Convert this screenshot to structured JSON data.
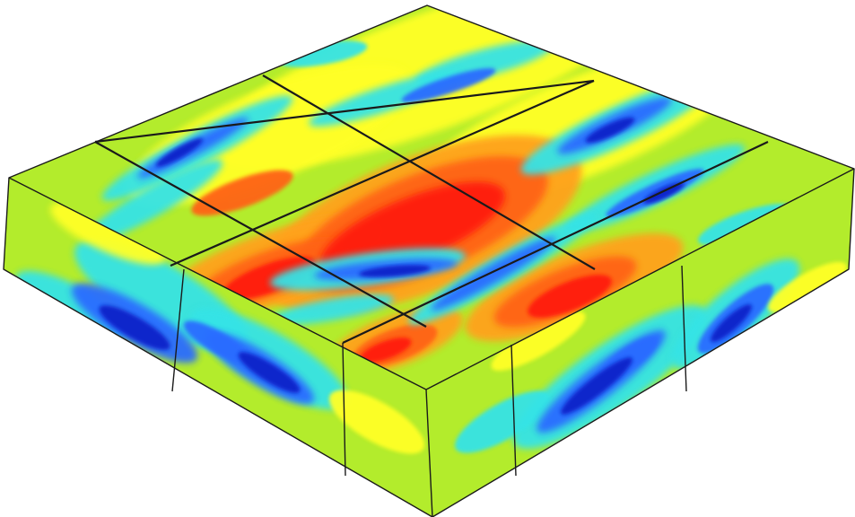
{
  "figure": {
    "colors": {
      "background": "#ffffff",
      "base": "#b3ec2c",
      "yellow": "#ffff26",
      "orange": "#ffa21e",
      "deep_orange": "#ff6414",
      "red": "#ff1e0a",
      "cyan": "#34e3e6",
      "blue": "#2c6cff",
      "navy": "#0c21c9",
      "edge": "#1a1a1a"
    }
  }
}
